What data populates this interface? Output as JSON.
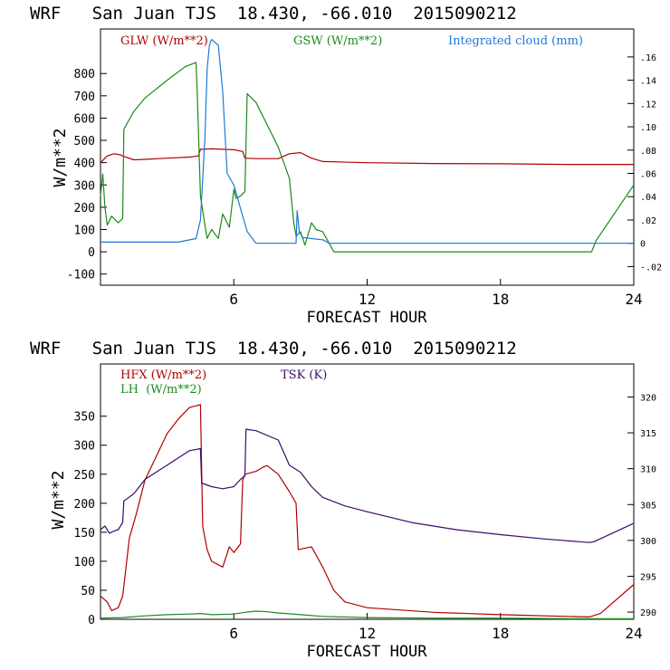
{
  "colors": {
    "glw": "#b00000",
    "gsw": "#1a8a1a",
    "cloud": "#1e78d8",
    "hfx": "#b00000",
    "lh": "#1a8a1a",
    "tsk": "#3c0a6e",
    "axis": "#000000"
  },
  "chart_data": [
    {
      "type": "line",
      "title": "WRF   San Juan TJS  18.430, -66.010  2015090212",
      "xlabel": "FORECAST HOUR",
      "ylabel": "W/m**2",
      "xlim": [
        0,
        24
      ],
      "ylim": [
        -150,
        1000
      ],
      "y2lim": [
        -0.036,
        0.184
      ],
      "x_ticks": [
        6,
        12,
        18,
        24
      ],
      "x_tick_labels": [
        "6",
        "12",
        "18",
        "24"
      ],
      "y_ticks": [
        -100,
        0,
        100,
        200,
        300,
        400,
        500,
        600,
        700,
        800
      ],
      "y_tick_labels": [
        "-100",
        "0",
        "100",
        "200",
        "300",
        "400",
        "500",
        "600",
        "700",
        "800"
      ],
      "y2_ticks": [
        -0.02,
        0,
        0.02,
        0.04,
        0.06,
        0.08,
        0.1,
        0.12,
        0.14,
        0.16
      ],
      "y2_tick_labels": [
        "-.02",
        "0",
        ".02",
        ".04",
        ".06",
        ".08",
        ".10",
        ".12",
        ".14",
        ".16"
      ],
      "legend": [
        {
          "label": "GLW (W/m**2)",
          "color_key": "glw"
        },
        {
          "label": "GSW (W/m**2)",
          "color_key": "gsw"
        },
        {
          "label": "Integrated cloud (mm)",
          "color_key": "cloud"
        }
      ],
      "series": [
        {
          "name": "GLW (W/m**2)",
          "axis": "left",
          "color_key": "glw",
          "x": [
            0,
            0.3,
            0.6,
            0.9,
            1.0,
            1.5,
            2.0,
            3.0,
            4.0,
            4.4,
            4.5,
            5.0,
            6.0,
            6.4,
            6.5,
            7.0,
            8.0,
            8.5,
            9.0,
            9.5,
            10.0,
            12.0,
            15.0,
            18.0,
            21.0,
            24.0
          ],
          "values": [
            400,
            430,
            440,
            435,
            430,
            413,
            415,
            420,
            425,
            430,
            460,
            462,
            458,
            450,
            420,
            418,
            418,
            440,
            445,
            420,
            405,
            400,
            396,
            395,
            392,
            392
          ]
        },
        {
          "name": "GSW (W/m**2)",
          "axis": "left",
          "color_key": "gsw",
          "x": [
            0,
            0.1,
            0.2,
            0.3,
            0.5,
            0.8,
            1.0,
            1.05,
            1.5,
            2.0,
            3.0,
            3.8,
            4.3,
            4.35,
            4.5,
            4.7,
            4.8,
            5.0,
            5.3,
            5.5,
            5.8,
            6.0,
            6.1,
            6.3,
            6.5,
            6.6,
            7.0,
            8.0,
            8.5,
            8.7,
            8.8,
            9.0,
            9.2,
            9.5,
            9.7,
            10.0,
            10.5,
            22.1,
            22.3,
            24.0
          ],
          "values": [
            250,
            350,
            200,
            120,
            160,
            130,
            150,
            550,
            630,
            690,
            770,
            830,
            850,
            720,
            250,
            120,
            60,
            100,
            60,
            170,
            110,
            280,
            240,
            250,
            270,
            710,
            670,
            470,
            330,
            130,
            70,
            90,
            30,
            130,
            100,
            90,
            0,
            0,
            50,
            300
          ]
        },
        {
          "name": "Integrated cloud (mm)",
          "axis": "right",
          "color_key": "cloud",
          "x": [
            0,
            3.5,
            4.3,
            4.5,
            4.7,
            4.8,
            4.9,
            5.0,
            5.3,
            5.5,
            5.7,
            6.0,
            6.3,
            6.6,
            7.0,
            8.0,
            8.8,
            8.85,
            8.95,
            9.1,
            9.5,
            10.0,
            10.3,
            10.5,
            12.0,
            15.0,
            18.0,
            21.0,
            24.0
          ],
          "values": [
            0.001,
            0.001,
            0.004,
            0.02,
            0.09,
            0.15,
            0.17,
            0.175,
            0.17,
            0.13,
            0.06,
            0.05,
            0.03,
            0.01,
            0.0,
            0.0,
            0.0,
            0.028,
            0.01,
            0.005,
            0.004,
            0.003,
            0.0,
            0.0,
            0.0,
            0.0,
            0.0,
            0.0,
            0.0
          ]
        }
      ]
    },
    {
      "type": "line",
      "title": "WRF   San Juan TJS  18.430, -66.010  2015090212",
      "xlabel": "FORECAST HOUR",
      "ylabel": "W/m**2",
      "xlim": [
        0,
        24
      ],
      "ylim": [
        0,
        440
      ],
      "y2lim": [
        289.0,
        324.6
      ],
      "x_ticks": [
        6,
        12,
        18,
        24
      ],
      "x_tick_labels": [
        "6",
        "12",
        "18",
        "24"
      ],
      "y_ticks": [
        0,
        50,
        100,
        150,
        200,
        250,
        300,
        350
      ],
      "y_tick_labels": [
        "0",
        "50",
        "100",
        "150",
        "200",
        "250",
        "300",
        "350"
      ],
      "y2_ticks": [
        290,
        295,
        300,
        305,
        310,
        315,
        320
      ],
      "y2_tick_labels": [
        "290",
        "295",
        "300",
        "305",
        "310",
        "315",
        "320"
      ],
      "legend": [
        {
          "label": "HFX (W/m**2)",
          "color_key": "hfx"
        },
        {
          "label": "LH  (W/m**2)",
          "color_key": "lh"
        },
        {
          "label": "TSK (K)",
          "color_key": "tsk"
        }
      ],
      "series": [
        {
          "name": "HFX (W/m**2)",
          "axis": "left",
          "color_key": "hfx",
          "x": [
            0,
            0.3,
            0.5,
            0.8,
            1.0,
            1.3,
            1.6,
            2.0,
            2.5,
            3.0,
            3.5,
            4.0,
            4.5,
            4.6,
            4.8,
            5.0,
            5.5,
            5.8,
            6.0,
            6.3,
            6.4,
            6.5,
            7.0,
            7.3,
            7.5,
            8.0,
            8.5,
            8.8,
            8.9,
            9.5,
            10.0,
            10.5,
            11.0,
            12.0,
            15.0,
            18.0,
            21.0,
            22.0,
            22.5,
            24.0
          ],
          "values": [
            40,
            30,
            15,
            20,
            40,
            140,
            180,
            240,
            280,
            320,
            345,
            365,
            370,
            160,
            120,
            100,
            90,
            125,
            115,
            130,
            240,
            250,
            255,
            262,
            265,
            250,
            220,
            200,
            120,
            125,
            90,
            50,
            30,
            20,
            12,
            8,
            5,
            4,
            10,
            60
          ]
        },
        {
          "name": "LH  (W/m**2)",
          "axis": "left",
          "color_key": "lh",
          "x": [
            0,
            1.0,
            2.0,
            3.0,
            4.0,
            4.5,
            5.0,
            6.0,
            6.5,
            7.0,
            7.5,
            8.0,
            9.0,
            10.0,
            12.0,
            15.0,
            18.0,
            21.0,
            24.0
          ],
          "values": [
            2,
            3,
            6,
            8,
            9,
            10,
            8,
            9,
            12,
            14,
            13,
            11,
            8,
            5,
            3,
            2,
            2,
            1,
            1
          ]
        },
        {
          "name": "TSK (K)",
          "axis": "right",
          "color_key": "tsk",
          "x": [
            0,
            0.2,
            0.4,
            0.6,
            0.8,
            1.0,
            1.05,
            1.5,
            2.0,
            3.0,
            4.0,
            4.5,
            4.55,
            5.0,
            5.5,
            6.0,
            6.3,
            6.5,
            6.55,
            7.0,
            8.0,
            8.5,
            9.0,
            9.5,
            10.0,
            11.0,
            12.0,
            14.0,
            16.0,
            18.0,
            20.0,
            22.0,
            22.2,
            24.0
          ],
          "values": [
            301.5,
            302.0,
            301.0,
            301.3,
            301.5,
            302.5,
            305.5,
            306.5,
            308.5,
            310.5,
            312.5,
            312.8,
            308.0,
            307.5,
            307.2,
            307.5,
            308.5,
            309.0,
            315.5,
            315.3,
            314.0,
            310.5,
            309.5,
            307.5,
            306.0,
            304.8,
            304.0,
            302.5,
            301.5,
            300.8,
            300.2,
            299.7,
            299.8,
            302.4
          ]
        }
      ]
    }
  ]
}
